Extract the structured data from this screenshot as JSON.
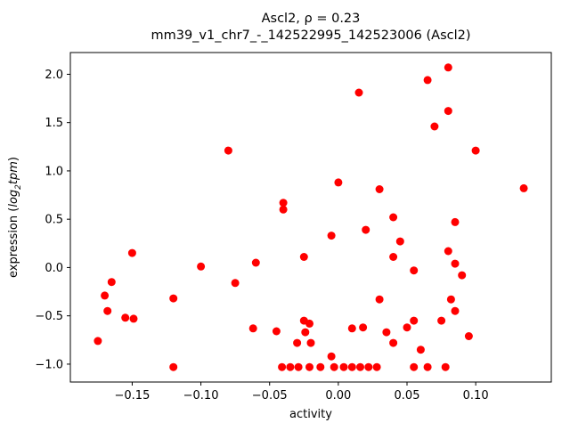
{
  "figure": {
    "title_line1": "Ascl2, ρ = 0.23",
    "title_line2": "mm39_v1_chr7_-_142522995_142523006 (Ascl2)",
    "xlabel": "activity",
    "ylabel_prefix": "expression (",
    "ylabel_math1": "log",
    "ylabel_sub": "2",
    "ylabel_math2": "tpm",
    "ylabel_suffix": ")"
  },
  "chart_data": {
    "type": "scatter",
    "title": "Ascl2, ρ = 0.23\nmm39_v1_chr7_-_142522995_142523006 (Ascl2)",
    "xlabel": "activity",
    "ylabel": "expression (log2 tpm)",
    "marker_color": "#ff0000",
    "marker_radius_px": 4.5,
    "grid": false,
    "legend": null,
    "xlim": [
      -0.195,
      0.155
    ],
    "ylim": [
      -1.185,
      2.225
    ],
    "xticks": {
      "values": [
        -0.15,
        -0.1,
        -0.05,
        0.0,
        0.05,
        0.1
      ],
      "labels": [
        "−0.15",
        "−0.10",
        "−0.05",
        "0.00",
        "0.05",
        "0.10"
      ]
    },
    "yticks": {
      "values": [
        -1.0,
        -0.5,
        0.0,
        0.5,
        1.0,
        1.5,
        2.0
      ],
      "labels": [
        "−1.0",
        "−0.5",
        "0.0",
        "0.5",
        "1.0",
        "1.5",
        "2.0"
      ]
    },
    "points": [
      [
        -0.175,
        -0.76
      ],
      [
        -0.17,
        -0.29
      ],
      [
        -0.168,
        -0.45
      ],
      [
        -0.165,
        -0.15
      ],
      [
        -0.155,
        -0.52
      ],
      [
        -0.149,
        -0.53
      ],
      [
        -0.15,
        0.15
      ],
      [
        -0.12,
        -0.32
      ],
      [
        -0.12,
        -1.03
      ],
      [
        -0.1,
        0.01
      ],
      [
        -0.08,
        1.21
      ],
      [
        -0.075,
        -0.16
      ],
      [
        -0.062,
        -0.63
      ],
      [
        -0.06,
        0.05
      ],
      [
        -0.045,
        -0.66
      ],
      [
        -0.041,
        -1.03
      ],
      [
        -0.04,
        0.67
      ],
      [
        -0.04,
        0.6
      ],
      [
        -0.035,
        -1.03
      ],
      [
        -0.03,
        -0.78
      ],
      [
        -0.029,
        -1.03
      ],
      [
        -0.025,
        0.11
      ],
      [
        -0.025,
        -0.55
      ],
      [
        -0.024,
        -0.67
      ],
      [
        -0.021,
        -0.58
      ],
      [
        -0.021,
        -1.03
      ],
      [
        -0.02,
        -0.78
      ],
      [
        -0.013,
        -1.03
      ],
      [
        -0.005,
        0.33
      ],
      [
        -0.005,
        -0.92
      ],
      [
        -0.003,
        -1.03
      ],
      [
        0.0,
        0.88
      ],
      [
        0.004,
        -1.03
      ],
      [
        0.01,
        -0.63
      ],
      [
        0.01,
        -1.03
      ],
      [
        0.015,
        1.81
      ],
      [
        0.016,
        -1.03
      ],
      [
        0.018,
        -0.62
      ],
      [
        0.02,
        0.39
      ],
      [
        0.022,
        -1.03
      ],
      [
        0.028,
        -1.03
      ],
      [
        0.03,
        0.81
      ],
      [
        0.03,
        -0.33
      ],
      [
        0.035,
        -0.67
      ],
      [
        0.04,
        0.52
      ],
      [
        0.04,
        0.11
      ],
      [
        0.04,
        -0.78
      ],
      [
        0.045,
        0.27
      ],
      [
        0.05,
        -0.62
      ],
      [
        0.055,
        -0.03
      ],
      [
        0.055,
        -0.55
      ],
      [
        0.055,
        -1.03
      ],
      [
        0.06,
        -0.85
      ],
      [
        0.065,
        1.94
      ],
      [
        0.065,
        -1.03
      ],
      [
        0.07,
        1.46
      ],
      [
        0.075,
        -0.55
      ],
      [
        0.078,
        -1.03
      ],
      [
        0.08,
        2.07
      ],
      [
        0.08,
        1.62
      ],
      [
        0.08,
        0.17
      ],
      [
        0.082,
        -0.33
      ],
      [
        0.085,
        0.47
      ],
      [
        0.085,
        0.04
      ],
      [
        0.085,
        -0.45
      ],
      [
        0.09,
        -0.08
      ],
      [
        0.095,
        -0.71
      ],
      [
        0.1,
        1.21
      ],
      [
        0.135,
        0.82
      ]
    ]
  }
}
